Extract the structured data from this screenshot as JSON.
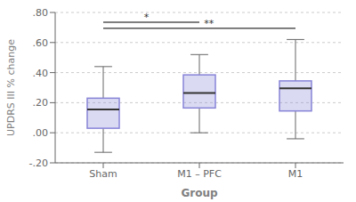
{
  "chart_data": {
    "type": "box",
    "categories": [
      "Sham",
      "M1 – PFC",
      "M1"
    ],
    "boxes": [
      {
        "median": 0.155,
        "q1": 0.03,
        "q3": 0.23,
        "whisker_low": -0.13,
        "whisker_high": 0.44
      },
      {
        "median": 0.265,
        "q1": 0.165,
        "q3": 0.385,
        "whisker_low": 0.0,
        "whisker_high": 0.52
      },
      {
        "median": 0.295,
        "q1": 0.145,
        "q3": 0.345,
        "whisker_low": -0.04,
        "whisker_high": 0.62
      }
    ],
    "ylim": [
      -0.2,
      0.8
    ],
    "yticks": [
      {
        "value": -0.2,
        "label": "-.20"
      },
      {
        "value": 0.0,
        "label": ".00"
      },
      {
        "value": 0.2,
        "label": ".20"
      },
      {
        "value": 0.4,
        "label": ".40"
      },
      {
        "value": 0.6,
        "label": ".60"
      },
      {
        "value": 0.8,
        "label": ".80"
      }
    ],
    "xlabel": "Group",
    "ylabel": "UPDRS III % change",
    "grid": true,
    "annotations": [
      {
        "text": "*",
        "from": "Sham",
        "to": "M1 – PFC",
        "y": 0.735
      },
      {
        "text": "**",
        "from": "Sham",
        "to": "M1",
        "y": 0.695
      }
    ]
  }
}
